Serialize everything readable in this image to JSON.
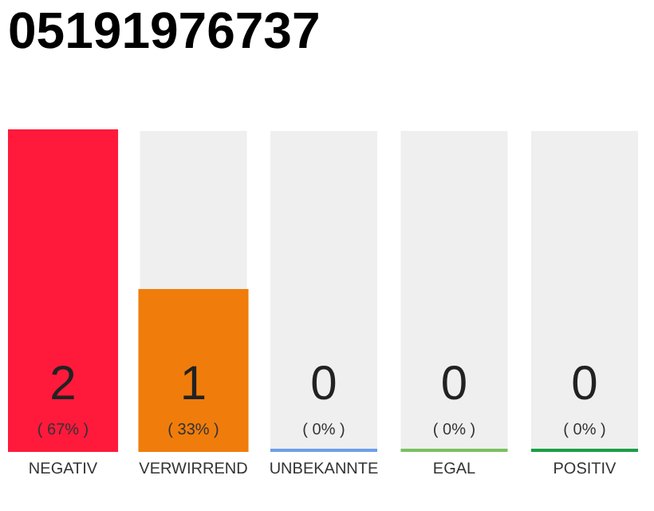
{
  "chart_data": {
    "type": "bar",
    "title": "05191976737",
    "categories": [
      "NEGATIV",
      "VERWIRREND",
      "UNBEKANNTE",
      "EGAL",
      "POSITIV"
    ],
    "values": [
      2,
      1,
      0,
      0,
      0
    ],
    "colors": [
      "#ff1a3c",
      "#f07d0b",
      "#6d9eeb",
      "#7ac060",
      "#1a9f45"
    ],
    "value_labels": [
      "2",
      "1",
      "0",
      "0",
      "0"
    ],
    "annotations": [
      "( 67% )",
      "( 33% )",
      "( 0% )",
      "( 0% )",
      "( 0% )"
    ],
    "grid": false
  }
}
